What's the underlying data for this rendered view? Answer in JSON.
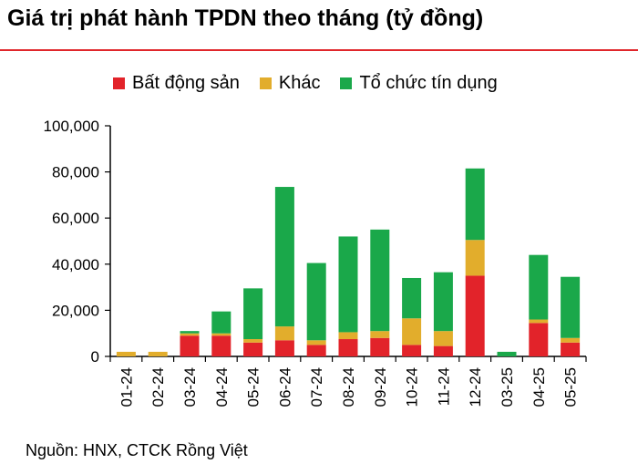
{
  "title": "Giá trị phát hành TPDN theo tháng (tỷ đồng)",
  "source": "Nguồn: HNX, CTCK Rồng Việt",
  "colors": {
    "rule": "#e0262b",
    "real_estate": "#e2232a",
    "other": "#e2ad2c",
    "credit": "#1aa84a",
    "axis": "#000000"
  },
  "chart_data": {
    "type": "bar",
    "stacked": true,
    "categories": [
      "01-24",
      "02-24",
      "03-24",
      "04-24",
      "05-24",
      "06-24",
      "07-24",
      "08-24",
      "09-24",
      "10-24",
      "11-24",
      "12-24",
      "03-25",
      "04-25",
      "05-25"
    ],
    "series": [
      {
        "name": "Bất động sản",
        "color": "#e2232a",
        "values": [
          0,
          0,
          9000,
          9000,
          6000,
          7000,
          5000,
          7500,
          8000,
          5000,
          4500,
          35000,
          0,
          14500,
          6000
        ]
      },
      {
        "name": "Khác",
        "color": "#e2ad2c",
        "values": [
          2000,
          2000,
          1000,
          1000,
          1500,
          6000,
          2000,
          3000,
          3000,
          11500,
          6500,
          15500,
          0,
          1500,
          2000
        ]
      },
      {
        "name": "Tổ chức tín dụng",
        "color": "#1aa84a",
        "values": [
          0,
          0,
          1000,
          9500,
          22000,
          60500,
          33500,
          41500,
          44000,
          17500,
          25500,
          31000,
          2000,
          28000,
          26500
        ]
      }
    ],
    "yticks": [
      "0",
      "20,000",
      "40,000",
      "60,000",
      "80,000",
      "100,000"
    ],
    "ylim": [
      0,
      100000
    ],
    "legend_position": "top",
    "grid": false
  }
}
